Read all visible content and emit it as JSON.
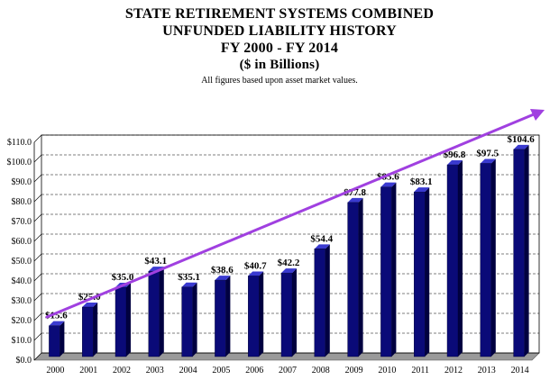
{
  "titles": {
    "line1": "STATE RETIREMENT SYSTEMS COMBINED",
    "line2": "UNFUNDED LIABILITY HISTORY",
    "line3": "FY 2000 - FY 2014",
    "line4": "($ in Billions)",
    "note": "All figures based upon asset market values."
  },
  "colors": {
    "bar_front": "#0a0a78",
    "bar_side": "#000040",
    "bar_top": "#3a3ad0",
    "floor": "#9a9a9a",
    "trend_arrow": "#a040e0"
  },
  "chart_data": {
    "type": "bar",
    "title": "STATE RETIREMENT SYSTEMS COMBINED UNFUNDED LIABILITY HISTORY FY 2000 - FY 2014",
    "subtitle": "($ in Billions)",
    "categories": [
      "2000",
      "2001",
      "2002",
      "2003",
      "2004",
      "2005",
      "2006",
      "2007",
      "2008",
      "2009",
      "2010",
      "2011",
      "2012",
      "2013",
      "2014"
    ],
    "values": [
      15.6,
      25.0,
      35.0,
      43.1,
      35.1,
      38.6,
      40.7,
      42.2,
      54.4,
      77.8,
      85.6,
      83.1,
      96.8,
      97.5,
      104.6
    ],
    "data_labels": [
      "$15.6",
      "$25.0",
      "$35.0",
      "$43.1",
      "$35.1",
      "$38.6",
      "$40.7",
      "$42.2",
      "$54.4",
      "$77.8",
      "$85.6",
      "$83.1",
      "$96.8",
      "$97.5",
      "$104.6"
    ],
    "y_ticks": [
      "$0.0",
      "$10.0",
      "$20.0",
      "$30.0",
      "$40.0",
      "$50.0",
      "$60.0",
      "$70.0",
      "$80.0",
      "$90.0",
      "$100.0",
      "$110.0"
    ],
    "ylim": [
      0,
      110
    ],
    "grid": true,
    "three_d": true,
    "trend_arrow": true
  }
}
